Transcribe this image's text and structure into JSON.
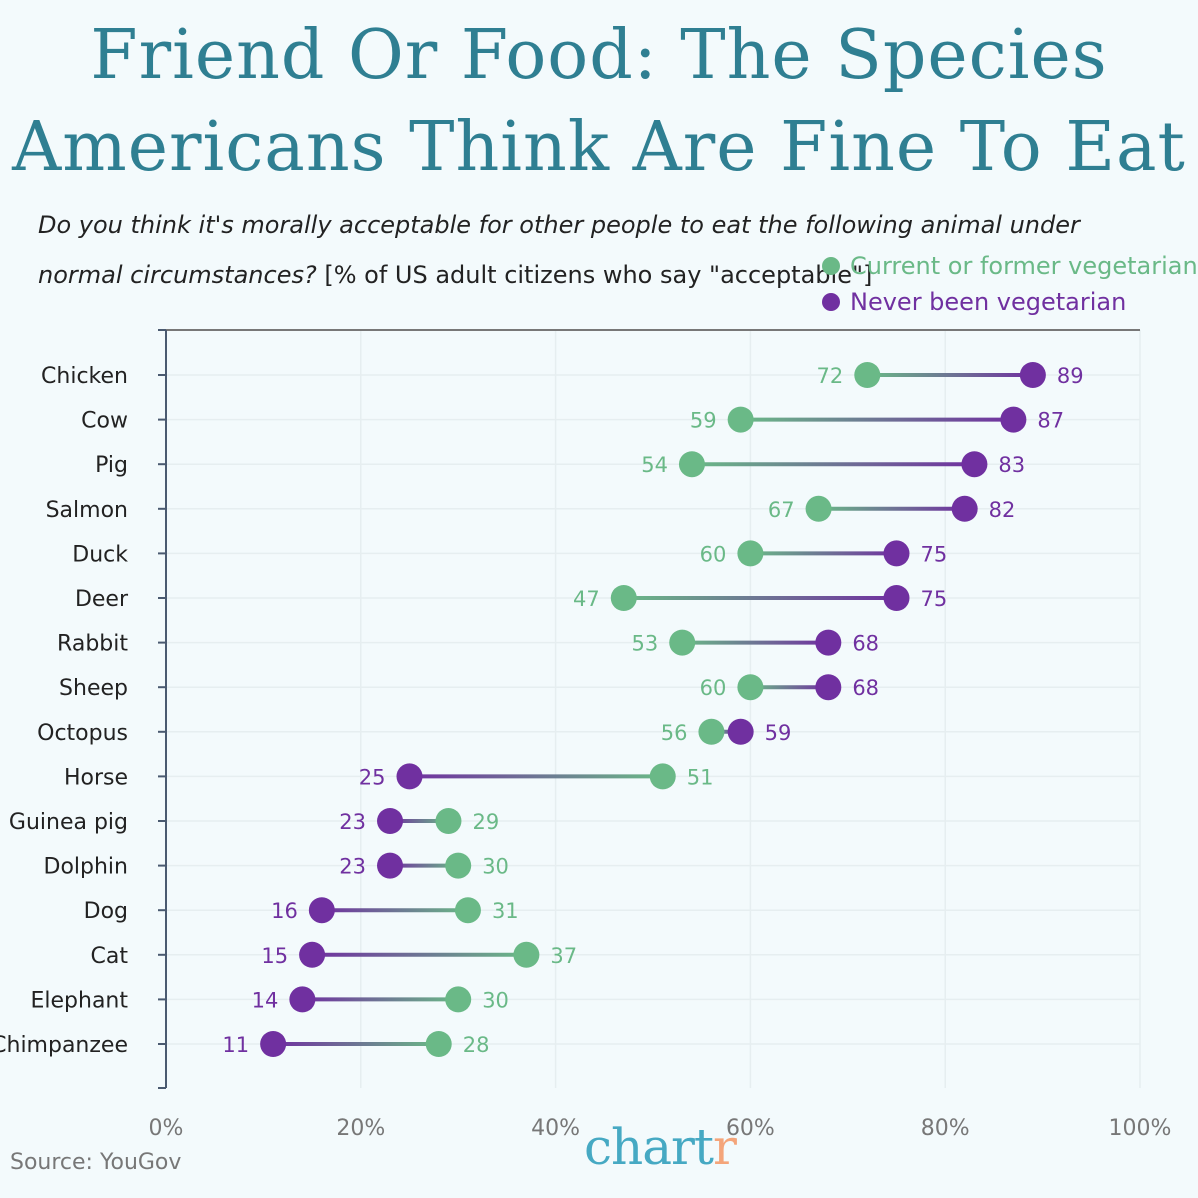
{
  "header": {
    "title_line1": "Friend Or Food: The Species",
    "title_line2": "Americans Think Are Fine To Eat",
    "subtitle_italic": "Do you think it's morally acceptable for other people to eat the following animal under normal circumstances?",
    "subtitle_plain": "[% of US adult citizens who say \"acceptable\"]"
  },
  "footer": {
    "source": "Source: YouGov",
    "logo_main": "chart",
    "logo_end": "r"
  },
  "colors": {
    "green": "#6ab987",
    "purple": "#7030a0",
    "title": "#2f7f92"
  },
  "chart_data": {
    "type": "dumbbell",
    "xlim": [
      0,
      100
    ],
    "x_ticks": [
      "0%",
      "20%",
      "40%",
      "60%",
      "80%",
      "100%"
    ],
    "grid": true,
    "legend_position": "top-right",
    "categories": [
      "Chicken",
      "Cow",
      "Pig",
      "Salmon",
      "Duck",
      "Deer",
      "Rabbit",
      "Sheep",
      "Octopus",
      "Horse",
      "Guinea pig",
      "Dolphin",
      "Dog",
      "Cat",
      "Elephant",
      "Chimpanzee"
    ],
    "series": [
      {
        "name": "Current or former vegetarian",
        "color": "#6ab987",
        "values": [
          72,
          59,
          54,
          67,
          60,
          47,
          53,
          60,
          56,
          51,
          29,
          30,
          31,
          37,
          30,
          28
        ]
      },
      {
        "name": "Never been vegetarian",
        "color": "#7030a0",
        "values": [
          89,
          87,
          83,
          82,
          75,
          75,
          68,
          68,
          59,
          25,
          23,
          23,
          16,
          15,
          14,
          11
        ]
      }
    ]
  }
}
